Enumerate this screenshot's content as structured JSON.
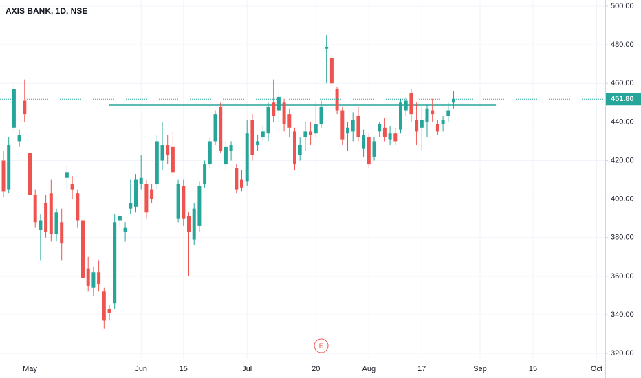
{
  "chart_data": {
    "type": "candlestick",
    "title": "AXIS BANK, 1D, NSE",
    "categories": [
      null,
      null,
      null,
      null,
      null,
      "May",
      null,
      null,
      null,
      null,
      null,
      null,
      null,
      null,
      null,
      null,
      null,
      null,
      null,
      null,
      null,
      null,
      null,
      null,
      null,
      null,
      "Jun",
      null,
      null,
      null,
      null,
      null,
      null,
      null,
      "15",
      null,
      null,
      null,
      null,
      null,
      null,
      null,
      null,
      null,
      null,
      null,
      "Jul",
      null,
      null,
      null,
      null,
      null,
      null,
      null,
      null,
      null,
      null,
      null,
      null,
      "20",
      null,
      null,
      null,
      null,
      null,
      null,
      null,
      null,
      null,
      "Aug",
      null,
      null,
      null,
      null,
      null,
      null,
      null,
      null,
      null,
      "17",
      null,
      null,
      null,
      null,
      null,
      null,
      null,
      null,
      null,
      null,
      "Sep",
      null,
      null,
      null,
      null,
      null,
      null,
      null,
      null,
      null,
      "15",
      null,
      null,
      null,
      null,
      null,
      null,
      null,
      null,
      null,
      null,
      null,
      "Oct"
    ],
    "open": [
      420,
      405,
      437,
      430,
      451,
      424,
      402,
      384,
      398,
      403,
      382,
      388,
      411,
      408,
      403,
      389,
      364,
      354,
      362,
      352,
      343,
      346,
      389,
      383,
      395,
      396,
      408,
      408,
      405,
      408,
      420,
      428,
      427,
      390,
      407,
      391,
      379,
      386,
      408,
      418,
      430,
      448,
      418,
      425,
      416,
      410,
      409,
      441,
      428,
      432,
      434,
      450,
      446,
      450,
      444,
      435,
      423,
      432,
      435,
      434,
      439,
      478,
      473,
      457,
      446,
      434,
      435,
      443,
      426,
      432,
      422,
      435,
      437,
      431,
      434,
      436,
      446,
      455,
      441,
      437,
      440,
      446,
      439,
      439,
      443,
      450,
      null,
      null,
      null,
      null,
      null,
      null,
      null,
      null,
      null,
      null,
      null,
      null,
      null,
      null,
      null,
      null,
      null,
      null,
      null,
      null,
      null,
      null,
      null,
      null,
      null,
      null,
      null
    ],
    "high": [
      425,
      432,
      459,
      436,
      462,
      424,
      405,
      392,
      402,
      410,
      395,
      395,
      417,
      412,
      405,
      390,
      370,
      365,
      368,
      354,
      345,
      392,
      392,
      388,
      410,
      413,
      423,
      410,
      408,
      433,
      440,
      433,
      435,
      410,
      410,
      393,
      398,
      409,
      420,
      432,
      446,
      450,
      430,
      430,
      418,
      415,
      441,
      444,
      433,
      438,
      450,
      462,
      456,
      452,
      447,
      437,
      432,
      440,
      440,
      450,
      451,
      485,
      475,
      458,
      448,
      440,
      445,
      448,
      436,
      434,
      432,
      440,
      442,
      438,
      437,
      452,
      453,
      457,
      450,
      448,
      449,
      452,
      441,
      443,
      450,
      456,
      null,
      null,
      null,
      null,
      null,
      null,
      null,
      null,
      null,
      null,
      null,
      null,
      null,
      null,
      null,
      null,
      null,
      null,
      null,
      null,
      null,
      null,
      null,
      null,
      null,
      null,
      null
    ],
    "low": [
      401,
      403,
      435,
      427,
      440,
      400,
      385,
      368,
      380,
      378,
      378,
      368,
      405,
      400,
      385,
      355,
      352,
      350,
      352,
      333,
      337,
      343,
      385,
      378,
      392,
      393,
      405,
      390,
      398,
      405,
      415,
      418,
      412,
      388,
      386,
      360,
      376,
      383,
      406,
      416,
      428,
      424,
      415,
      420,
      403,
      404,
      407,
      420,
      425,
      430,
      430,
      440,
      440,
      435,
      432,
      415,
      420,
      425,
      428,
      432,
      437,
      460,
      458,
      444,
      428,
      425,
      430,
      430,
      422,
      416,
      420,
      432,
      430,
      428,
      428,
      434,
      443,
      440,
      428,
      425,
      432,
      440,
      433,
      435,
      440,
      447,
      null,
      null,
      null,
      null,
      null,
      null,
      null,
      null,
      null,
      null,
      null,
      null,
      null,
      null,
      null,
      null,
      null,
      null,
      null,
      null,
      null,
      null,
      null,
      null,
      null,
      null,
      null
    ],
    "close": [
      404,
      428,
      457,
      433,
      444,
      402,
      388,
      389,
      383,
      382,
      393,
      377,
      414,
      405,
      389,
      359,
      355,
      362,
      356,
      337,
      341,
      388,
      391,
      385,
      398,
      410,
      411,
      393,
      400,
      430,
      428,
      423,
      414,
      408,
      390,
      383,
      395,
      407,
      418,
      430,
      444,
      425,
      427,
      428,
      405,
      406,
      434,
      423,
      430,
      435,
      448,
      443,
      453,
      439,
      437,
      418,
      428,
      435,
      433,
      439,
      448,
      479,
      460,
      446,
      431,
      437,
      441,
      432,
      433,
      418,
      430,
      439,
      432,
      434,
      430,
      450,
      451,
      444,
      435,
      441,
      447,
      444,
      435,
      441,
      446,
      451.8,
      null,
      null,
      null,
      null,
      null,
      null,
      null,
      null,
      null,
      null,
      null,
      null,
      null,
      null,
      null,
      null,
      null,
      null,
      null,
      null,
      null,
      null,
      null,
      null,
      null,
      null,
      null
    ],
    "up_color": "#26a69a",
    "down_color": "#ef5350",
    "ylim": [
      317.2,
      503.2
    ],
    "yticks": [
      {
        "value": 320,
        "label": "320.00"
      },
      {
        "value": 340,
        "label": "340.00"
      },
      {
        "value": 360,
        "label": "360.00"
      },
      {
        "value": 380,
        "label": "380.00"
      },
      {
        "value": 400,
        "label": "400.00"
      },
      {
        "value": 420,
        "label": "420.00"
      },
      {
        "value": 440,
        "label": "440.00"
      },
      {
        "value": 460,
        "label": "460.00"
      },
      {
        "value": 480,
        "label": "480.00"
      },
      {
        "value": 500,
        "label": "500.00"
      }
    ],
    "grid": true,
    "horizontal_line": {
      "value": 448.7,
      "color": "#26a69a"
    },
    "last_price": {
      "value": 451.8,
      "label": "451.80"
    },
    "event_marker": "E"
  }
}
